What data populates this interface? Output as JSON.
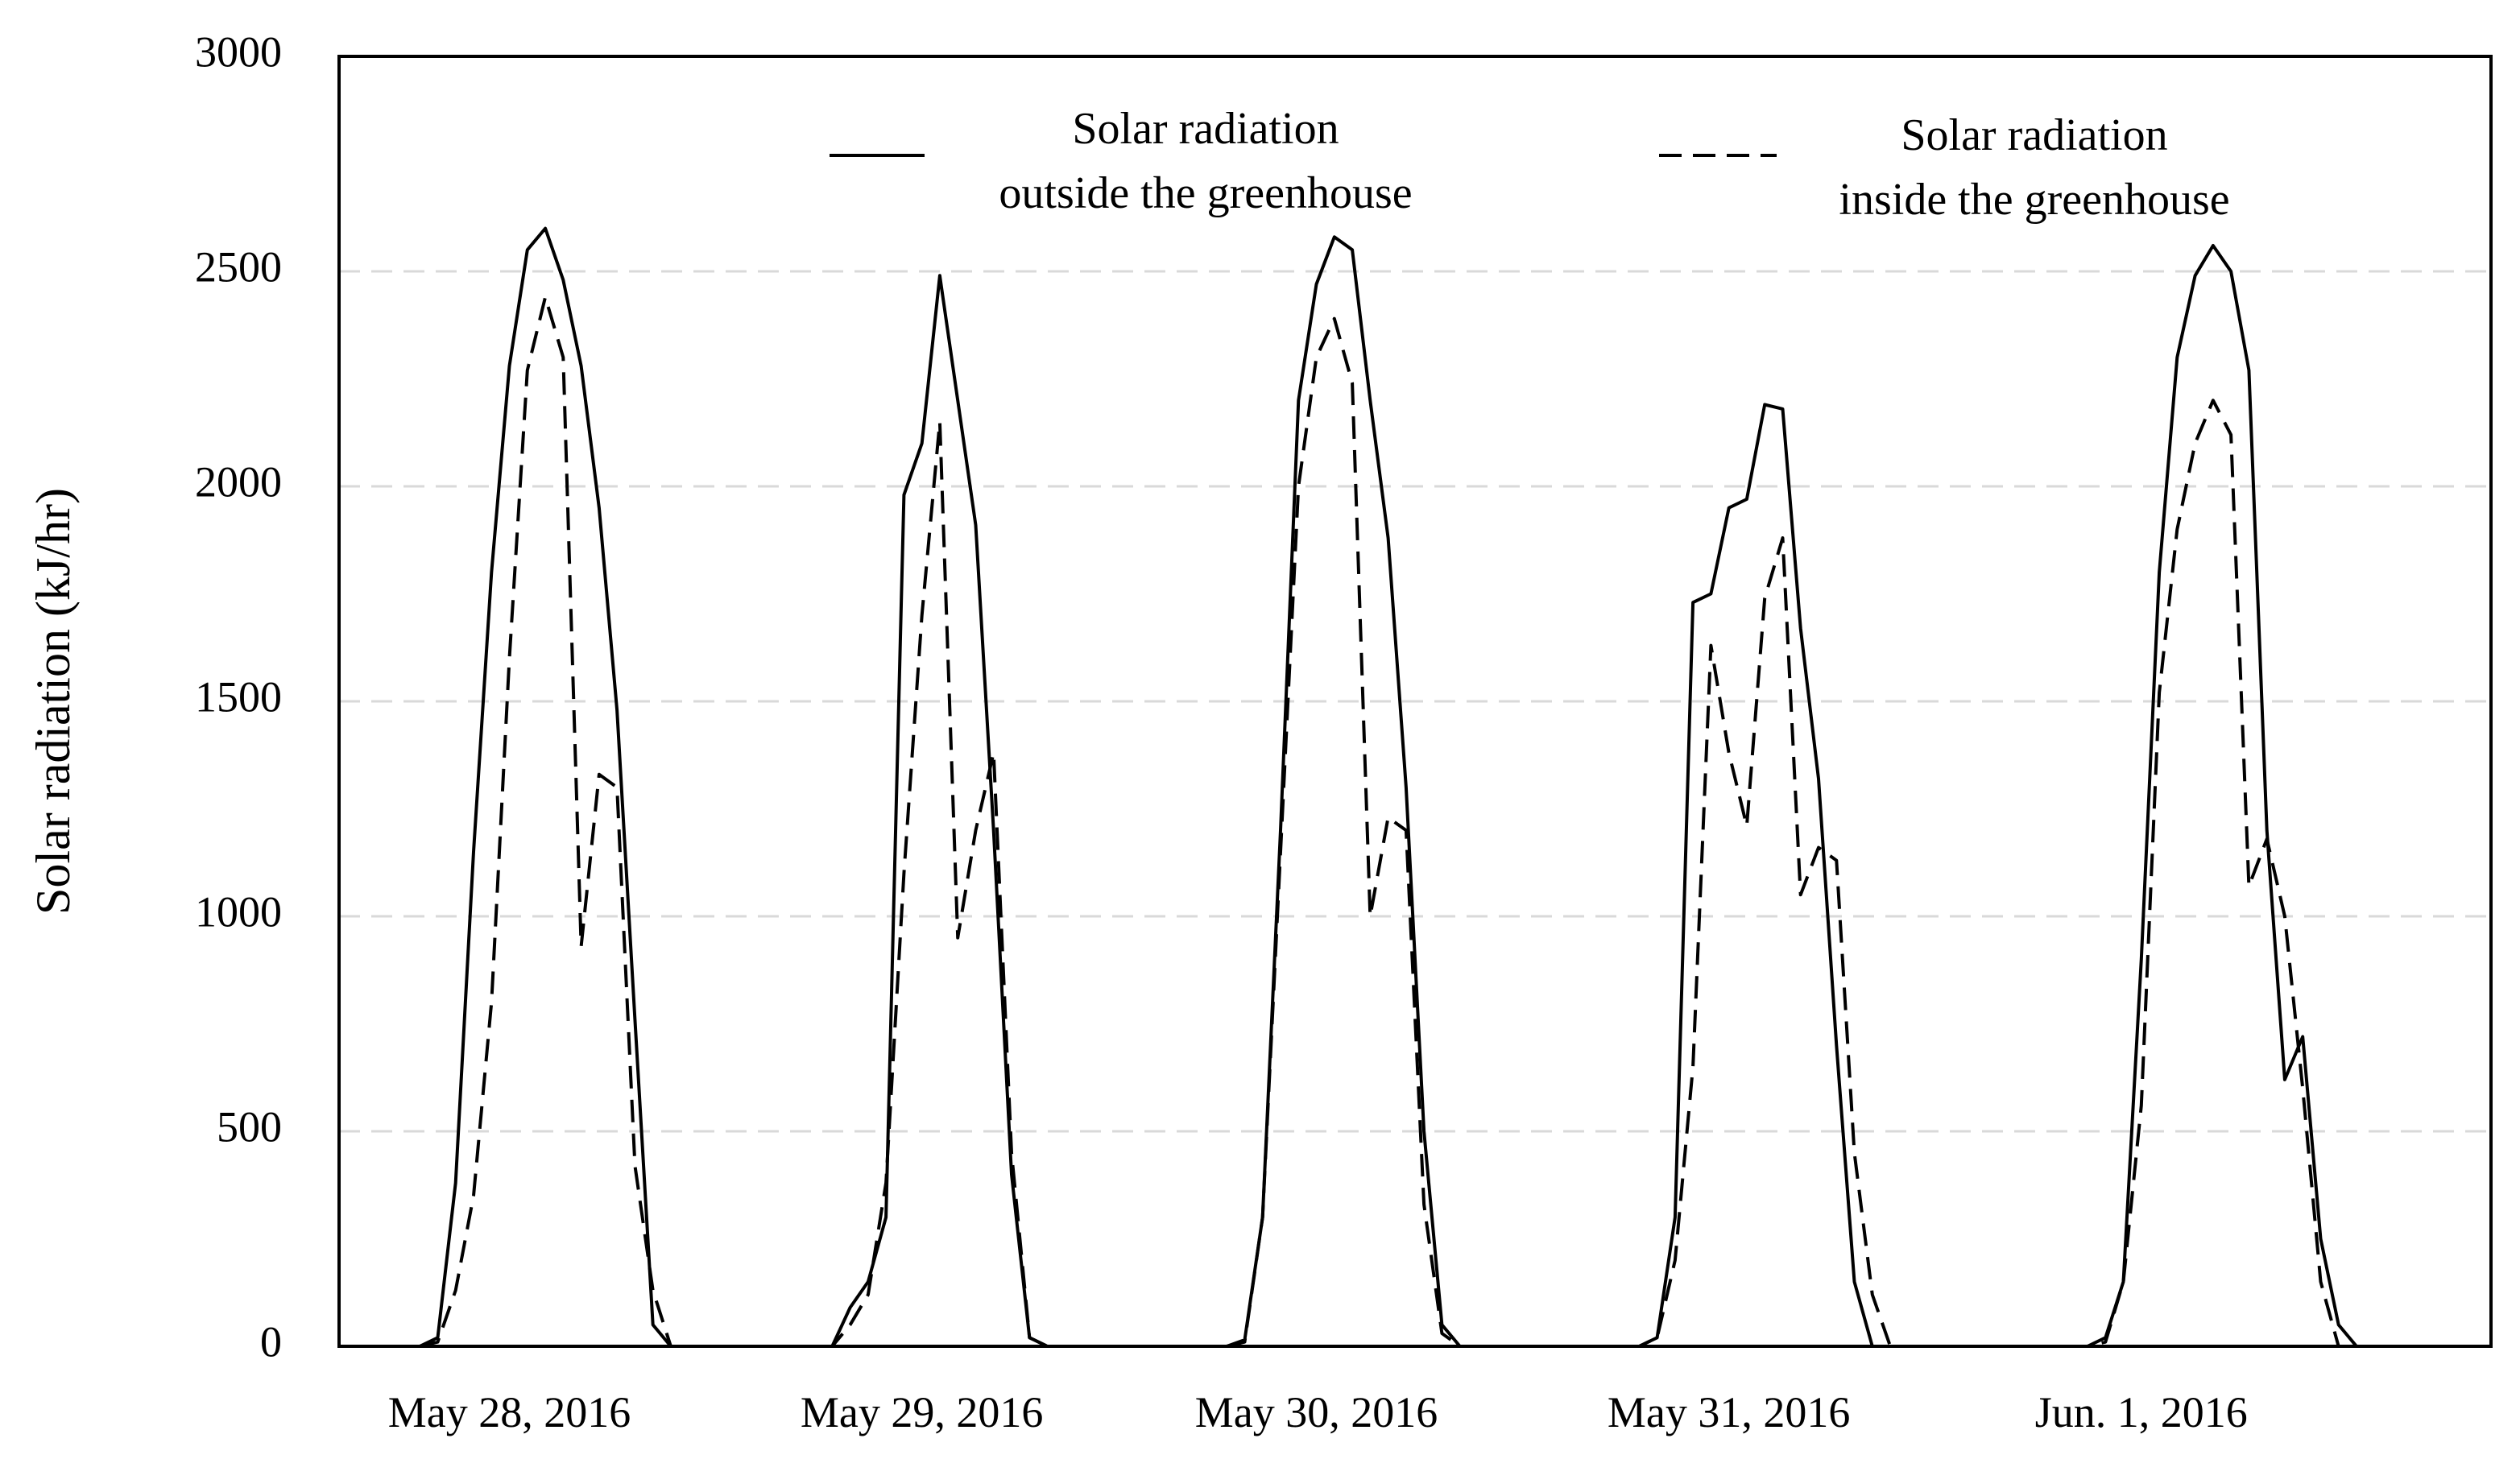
{
  "chart_data": {
    "type": "line",
    "title": "",
    "xlabel": "",
    "ylabel": "Solar radiation  (kJ/hr)",
    "ylim": [
      0,
      3000
    ],
    "yticks": [
      0,
      500,
      1000,
      1500,
      2000,
      2500,
      3000
    ],
    "grid": "horizontal dashed",
    "legend_position": "top",
    "x_unit": "hour index (0 = 00:00 May 28, 2016)",
    "xlim": [
      0,
      120
    ],
    "day_labels": [
      "May 28, 2016",
      "May 29, 2016",
      "May 30, 2016",
      "May 31, 2016",
      "Jun. 1, 2016"
    ],
    "day_label_x": [
      9.5,
      32.5,
      54.5,
      77.5,
      100.5
    ],
    "series": [
      {
        "name": "Solar radiation outside the greenhouse",
        "legend_line1": "Solar radiation",
        "legend_line2": "outside the greenhouse",
        "style": "solid",
        "x": [
          4.5,
          5.5,
          6.5,
          7.5,
          8.5,
          9.5,
          10.5,
          11.5,
          12.5,
          13.5,
          14.5,
          15.5,
          16.5,
          17.5,
          18.5,
          27.5,
          28.5,
          29.5,
          30.5,
          31.5,
          32.5,
          33.5,
          34.5,
          35.5,
          36.5,
          37.5,
          38.5,
          39.5,
          40.5,
          41.5,
          49.5,
          50.5,
          51.5,
          52.5,
          53.5,
          54.5,
          55.5,
          56.5,
          57.5,
          58.5,
          59.5,
          60.5,
          61.5,
          62.5,
          72.5,
          73.5,
          74.5,
          75.5,
          76.5,
          77.5,
          78.5,
          79.5,
          80.5,
          81.5,
          82.5,
          83.5,
          84.5,
          85.5,
          86.5,
          96.5,
          97.5,
          98.5,
          99.5,
          100.5,
          101.5,
          102.5,
          103.5,
          104.5,
          105.5,
          106.5,
          107.5,
          108.5,
          109.5,
          110.5,
          111.5,
          112.5
        ],
        "values": [
          0,
          20,
          380,
          1150,
          1800,
          2280,
          2550,
          2600,
          2480,
          2280,
          1950,
          1480,
          760,
          50,
          0,
          0,
          90,
          150,
          300,
          1980,
          2100,
          2490,
          2200,
          1910,
          1200,
          400,
          20,
          0,
          0,
          0,
          0,
          15,
          300,
          1200,
          2200,
          2470,
          2580,
          2550,
          2200,
          1880,
          1300,
          500,
          50,
          0,
          0,
          20,
          300,
          1730,
          1750,
          1950,
          1970,
          2190,
          2180,
          1670,
          1320,
          700,
          150,
          0,
          0,
          0,
          0,
          20,
          150,
          900,
          1800,
          2300,
          2490,
          2560,
          2500,
          2270,
          1200,
          620,
          720,
          250,
          50,
          0
        ]
      },
      {
        "name": "Solar radiation inside the greenhouse",
        "legend_line1": "Solar radiation",
        "legend_line2": "inside the greenhouse",
        "style": "dashed",
        "x": [
          4.5,
          5.5,
          6.5,
          7.5,
          8.5,
          9.5,
          10.5,
          11.5,
          12.5,
          13.5,
          14.5,
          15.5,
          16.5,
          17.5,
          18.5,
          27.5,
          28.5,
          29.5,
          30.5,
          31.5,
          32.5,
          33.5,
          34.5,
          35.5,
          36.5,
          37.5,
          38.5,
          39.5,
          40.5,
          41.5,
          49.5,
          50.5,
          51.5,
          52.5,
          53.5,
          54.5,
          55.5,
          56.5,
          57.5,
          58.5,
          59.5,
          60.5,
          61.5,
          62.5,
          72.5,
          73.5,
          74.5,
          75.5,
          76.5,
          77.5,
          78.5,
          79.5,
          80.5,
          81.5,
          82.5,
          83.5,
          84.5,
          85.5,
          86.5,
          96.5,
          97.5,
          98.5,
          99.5,
          100.5,
          101.5,
          102.5,
          103.5,
          104.5,
          105.5,
          106.5,
          107.5,
          108.5,
          109.5,
          110.5,
          111.5,
          112.5
        ],
        "values": [
          0,
          10,
          130,
          350,
          800,
          1600,
          2270,
          2440,
          2300,
          930,
          1330,
          1300,
          420,
          130,
          0,
          0,
          50,
          120,
          380,
          1100,
          1700,
          2150,
          950,
          1200,
          1380,
          450,
          20,
          0,
          0,
          0,
          0,
          10,
          300,
          1150,
          2000,
          2300,
          2390,
          2240,
          1000,
          1230,
          1200,
          330,
          30,
          0,
          0,
          20,
          200,
          650,
          1630,
          1380,
          1210,
          1740,
          1880,
          1050,
          1160,
          1130,
          450,
          120,
          0,
          0,
          0,
          10,
          150,
          560,
          1520,
          1900,
          2100,
          2200,
          2120,
          1070,
          1180,
          1000,
          600,
          150,
          0,
          0
        ]
      }
    ]
  }
}
